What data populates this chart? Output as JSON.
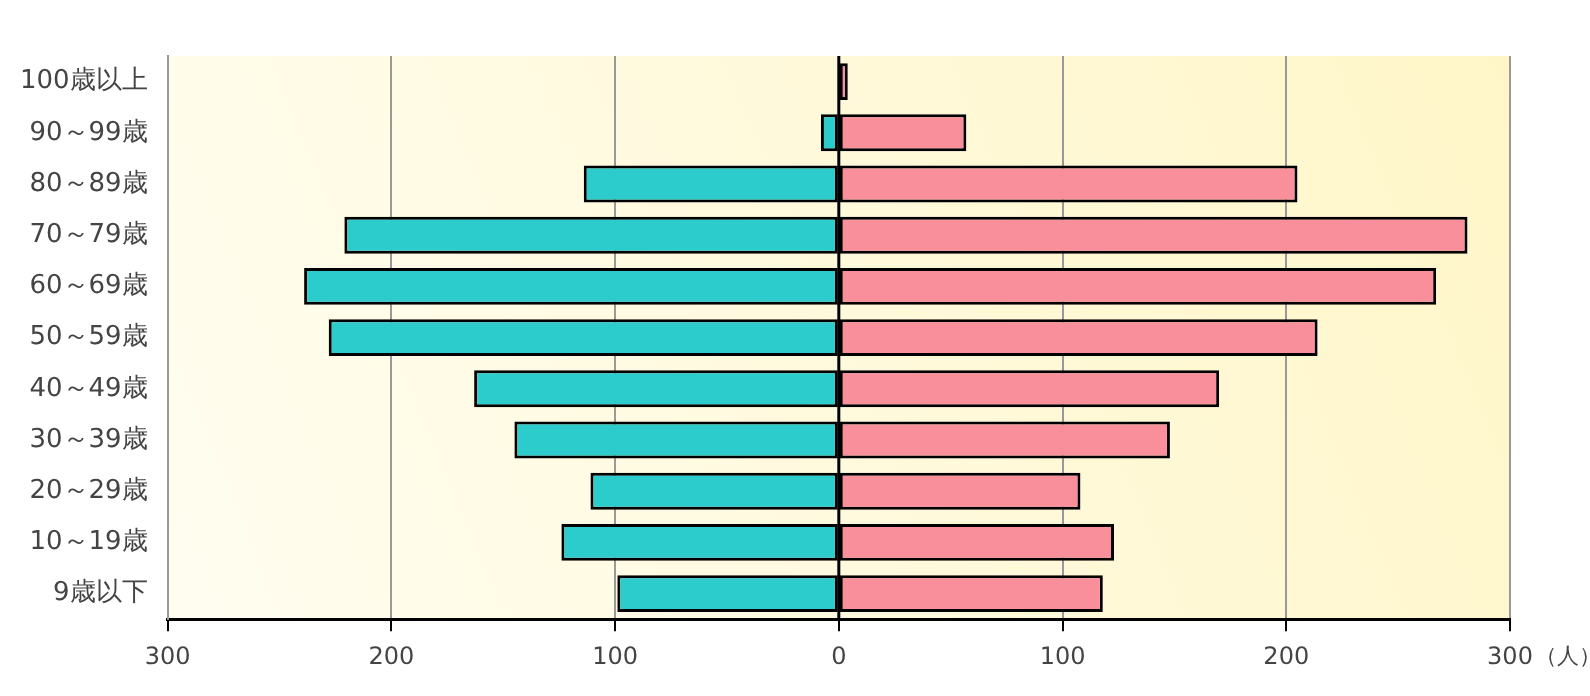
{
  "chart_data": {
    "type": "bar",
    "orientation": "horizontal",
    "stacked": true,
    "categories": [
      "100歳以上",
      "90～99歳",
      "80～89歳",
      "70～79歳",
      "60～69歳",
      "50～59歳",
      "40～49歳",
      "30～39歳",
      "20～29歳",
      "10～19歳",
      "9歳以下"
    ],
    "series": [
      {
        "color": "#2ccbcc",
        "values": [
          null,
          -8,
          -114,
          -221,
          -239,
          -228,
          -163,
          -145,
          -111,
          -124,
          -99
        ]
      },
      {
        "color": "#f98f9a",
        "values": [
          4,
          57,
          205,
          281,
          267,
          214,
          170,
          148,
          108,
          123,
          118
        ]
      }
    ],
    "xlim": [
      -300,
      300
    ],
    "xticks": [
      {
        "value": -300,
        "label": "300"
      },
      {
        "value": -200,
        "label": "200"
      },
      {
        "value": -100,
        "label": "100"
      },
      0,
      100,
      200,
      300
    ],
    "xlabel": "（人）",
    "grid": "x",
    "legend": false
  }
}
